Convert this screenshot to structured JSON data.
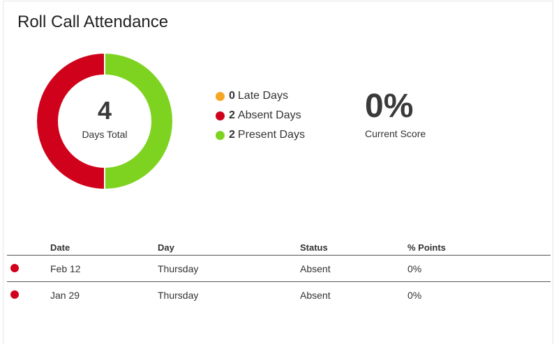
{
  "title": "Roll Call Attendance",
  "colors": {
    "late": "#f5a623",
    "absent": "#d0021b",
    "present": "#7ed321"
  },
  "summary": {
    "total": "4",
    "total_label": "Days Total"
  },
  "legend": [
    {
      "count": "0",
      "label": "Late Days",
      "status": "late",
      "icon": "late-dot-icon"
    },
    {
      "count": "2",
      "label": "Absent Days",
      "status": "absent",
      "icon": "absent-dot-icon"
    },
    {
      "count": "2",
      "label": "Present Days",
      "status": "present",
      "icon": "present-dot-icon"
    }
  ],
  "chart_data": {
    "type": "pie",
    "categories": [
      "Late",
      "Absent",
      "Present"
    ],
    "values": [
      0,
      2,
      2
    ],
    "title": ""
  },
  "score": {
    "value": "0%",
    "label": "Current Score"
  },
  "table": {
    "headers": [
      "Date",
      "Day",
      "Status",
      "% Points"
    ],
    "rows": [
      {
        "status_color": "absent",
        "date": "Feb 12",
        "day": "Thursday",
        "status": "Absent",
        "points": "0%"
      },
      {
        "status_color": "absent",
        "date": "Jan 29",
        "day": "Thursday",
        "status": "Absent",
        "points": "0%"
      }
    ]
  }
}
